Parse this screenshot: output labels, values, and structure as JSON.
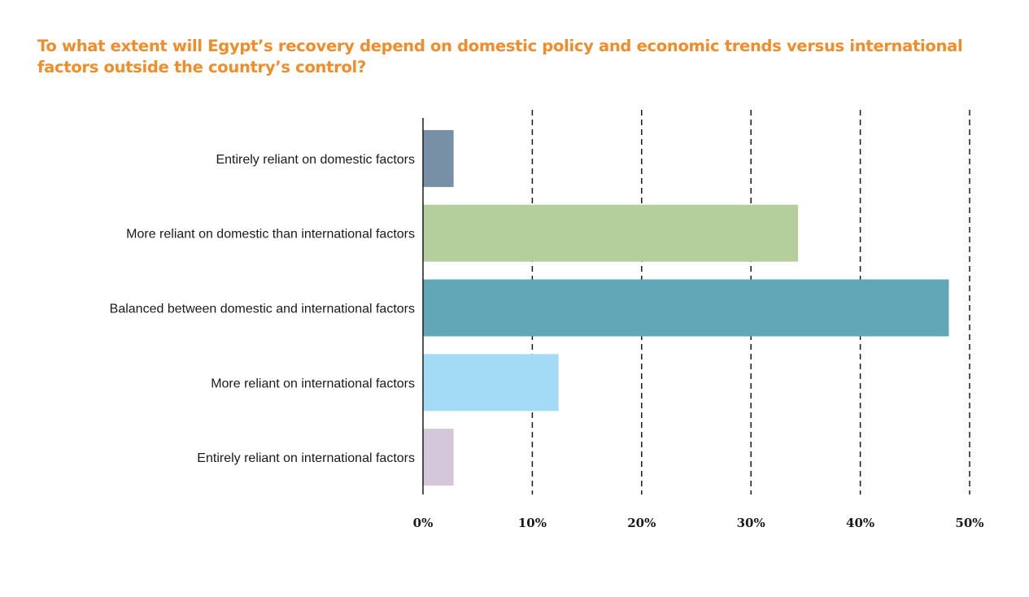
{
  "chart_data": {
    "type": "bar",
    "orientation": "horizontal",
    "title": "To what extent will Egypt’s recovery depend on domestic policy and economic trends versus international factors outside the country’s control?",
    "xlabel": "",
    "ylabel": "",
    "categories": [
      "Entirely reliant on domestic factors",
      "More reliant on domestic than international factors",
      "Balanced between domestic and international factors",
      "More reliant on international factors",
      "Entirely reliant on international factors"
    ],
    "values": [
      2.8,
      34.3,
      48.1,
      12.4,
      2.8
    ],
    "colors": [
      "#7890a6",
      "#b4cf9c",
      "#62a7b8",
      "#a3dbf6",
      "#d4c7da"
    ],
    "xlim": [
      0,
      50
    ],
    "xticks": [
      0,
      10,
      20,
      30,
      40,
      50
    ],
    "xtick_labels": [
      "0%",
      "10%",
      "20%",
      "30%",
      "40%",
      "50%"
    ],
    "grid": "vertical dashed",
    "legend": "none"
  }
}
